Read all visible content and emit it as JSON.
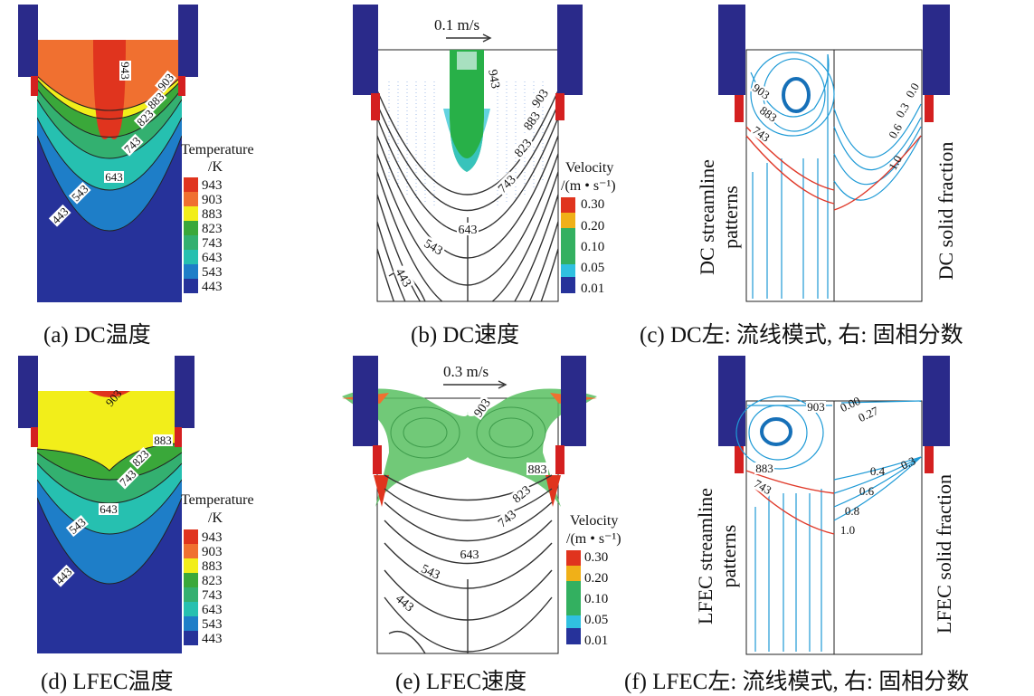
{
  "panels": {
    "a": {
      "caption": "(a) DC温度",
      "legend_title_1": "Temperature",
      "legend_title_2": "/K",
      "legend": [
        "943",
        "903",
        "883",
        "823",
        "743",
        "643",
        "543",
        "443"
      ],
      "contour_labels": [
        "943",
        "903",
        "883",
        "823",
        "743",
        "643",
        "543",
        "443"
      ]
    },
    "b": {
      "caption": "(b) DC速度",
      "arrow_label": "0.1 m/s",
      "legend_title_1": "Velocity",
      "legend_title_2": "/(m • s⁻¹)",
      "legend": [
        "0.30",
        "0.20",
        "0.10",
        "0.05",
        "0.01"
      ],
      "contour_labels": [
        "943",
        "903",
        "883",
        "823",
        "743",
        "643",
        "543",
        "443"
      ]
    },
    "c": {
      "caption": "(c) DC左: 流线模式, 右: 固相分数",
      "left_label_1": "DC streamline",
      "left_label_2": "patterns",
      "right_label": "DC solid fraction",
      "contour_labels": [
        "903",
        "883",
        "743"
      ],
      "fraction_labels": [
        "0.0",
        "0.3",
        "0.6",
        "1.0"
      ]
    },
    "d": {
      "caption": "(d) LFEC温度",
      "legend_title_1": "Temperature",
      "legend_title_2": "/K",
      "legend": [
        "943",
        "903",
        "883",
        "823",
        "743",
        "643",
        "543",
        "443"
      ],
      "contour_labels": [
        "903",
        "883",
        "823",
        "743",
        "643",
        "543",
        "443"
      ]
    },
    "e": {
      "caption": "(e) LFEC速度",
      "arrow_label": "0.3 m/s",
      "legend_title_1": "Velocity",
      "legend_title_2": "/(m • s⁻¹)",
      "legend": [
        "0.30",
        "0.20",
        "0.10",
        "0.05",
        "0.01"
      ],
      "contour_labels": [
        "903",
        "883",
        "823",
        "743",
        "643",
        "543",
        "443"
      ]
    },
    "f": {
      "caption": "(f) LFEC左: 流线模式, 右: 固相分数",
      "left_label_1": "LFEC streamline",
      "left_label_2": "patterns",
      "right_label": "LFEC solid fraction",
      "contour_labels": [
        "903",
        "883",
        "743"
      ],
      "fraction_labels": [
        "0.00",
        "0.27",
        "0.3",
        "0.4",
        "0.6",
        "0.8",
        "1.0"
      ]
    }
  },
  "colors": {
    "mold": "#2a2a8a",
    "ring": "#d42020",
    "c943": "#e0341e",
    "c903": "#f07030",
    "c883": "#f2ee1a",
    "c823": "#3aa83a",
    "c743": "#33b070",
    "c643": "#26c0b0",
    "c543": "#1e7ec8",
    "c443": "#26329a",
    "stream": "#1e9ad6",
    "contour_red": "#e03a2a"
  }
}
